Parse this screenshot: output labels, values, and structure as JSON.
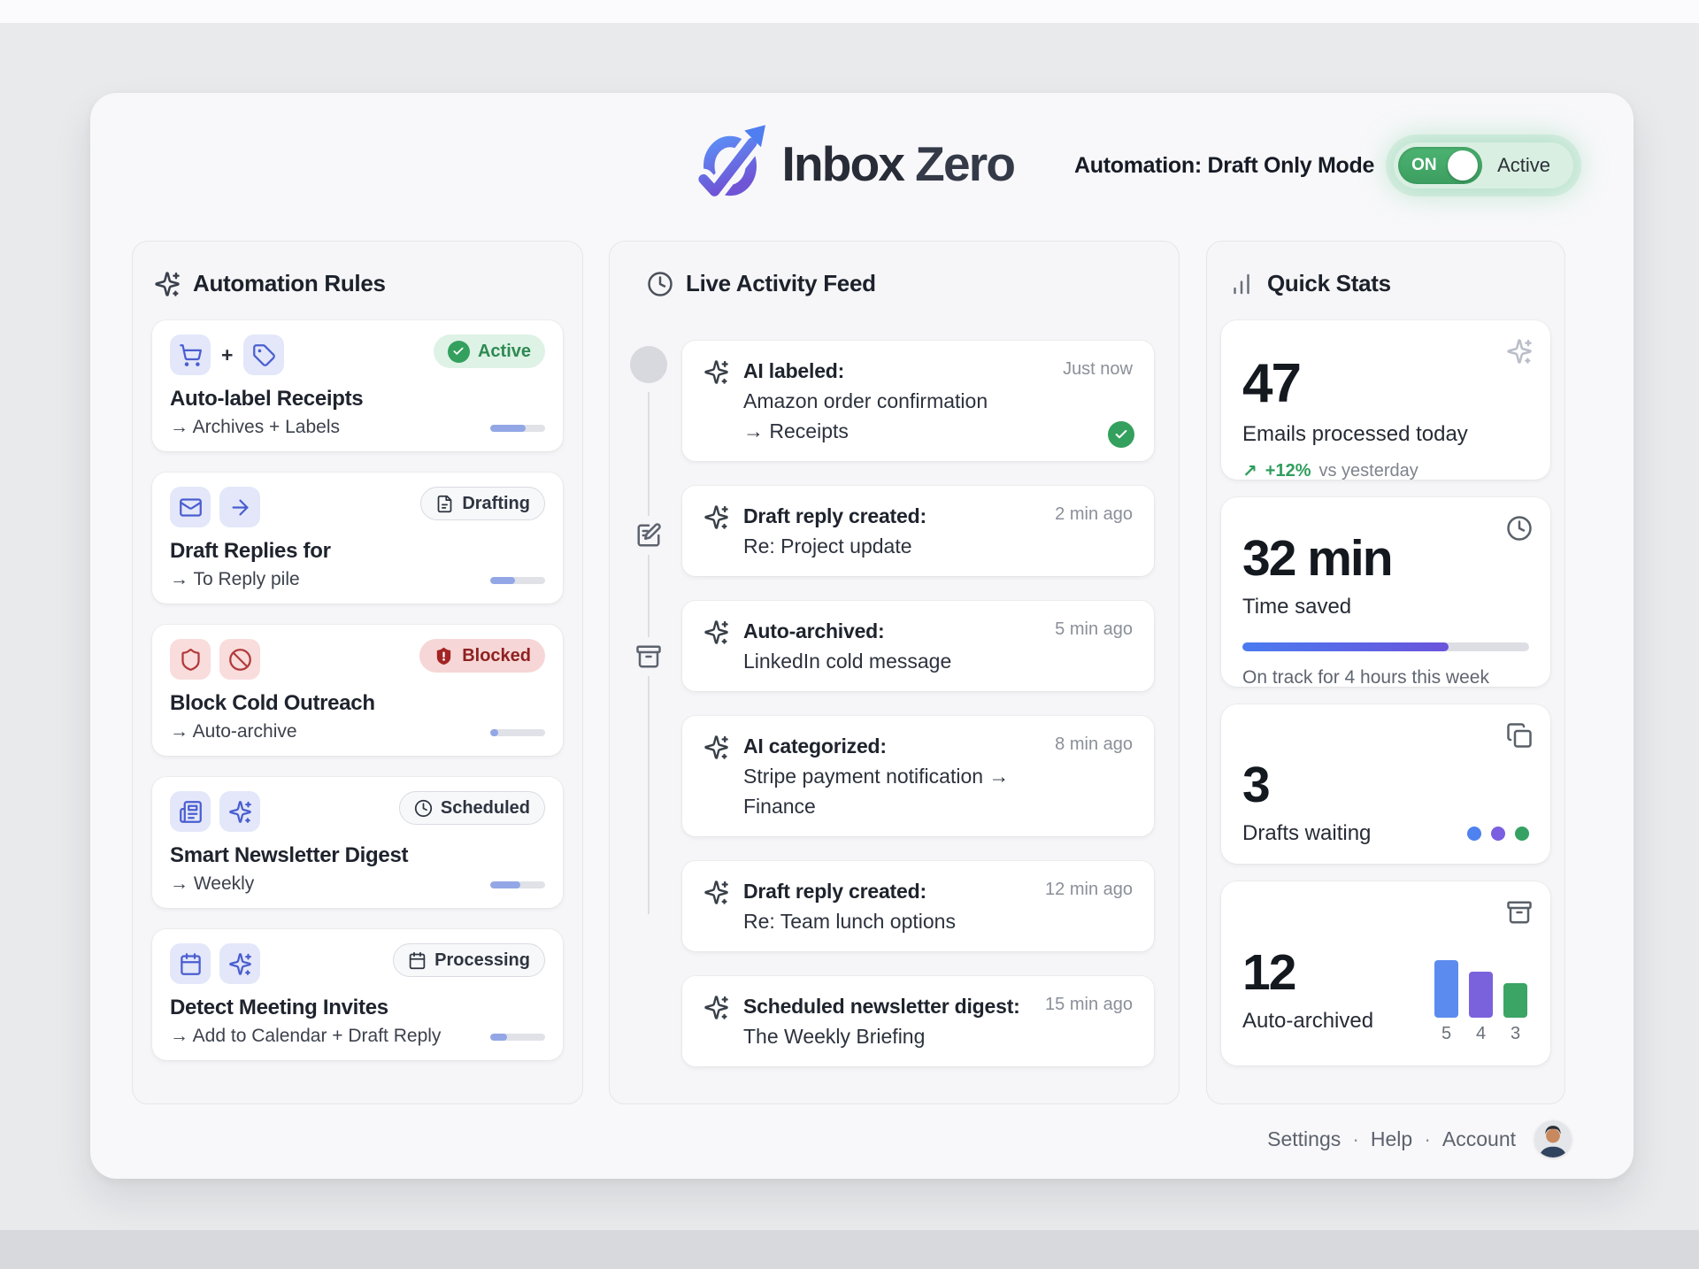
{
  "header": {
    "brand_first": "Inbox",
    "brand_second": "Zero",
    "automation_label": "Automation: Draft Only Mode",
    "toggle_label": "ON",
    "toggle_status": "Active"
  },
  "automation_rules": {
    "title": "Automation Rules",
    "cards": [
      {
        "title": "Auto-label Receipts",
        "subtitle": "→ Archives + Labels",
        "badge": "Active",
        "icon_joiner": "+",
        "progress": 65
      },
      {
        "title": "Draft Replies for",
        "subtitle": "→ To Reply pile",
        "badge": "Drafting",
        "progress": 45
      },
      {
        "title": "Block Cold Outreach",
        "subtitle": "→ Auto-archive",
        "badge": "Blocked",
        "progress": 15
      },
      {
        "title": "Smart Newsletter Digest",
        "subtitle": "→ Weekly",
        "badge": "Scheduled",
        "progress": 55
      },
      {
        "title": "Detect Meeting Invites",
        "subtitle": "→ Add to Calendar + Draft Reply",
        "badge": "Processing",
        "progress": 30
      }
    ]
  },
  "activity_feed": {
    "title": "Live Activity Feed",
    "items": [
      {
        "action": "AI labeled:",
        "detail": "Amazon order confirmation",
        "detail2": "→ Receipts",
        "time": "Just now"
      },
      {
        "action": "Draft reply created:",
        "detail": "Re: Project update",
        "time": "2 min ago"
      },
      {
        "action": "Auto-archived:",
        "detail": "LinkedIn cold message",
        "time": "5 min ago"
      },
      {
        "action": "AI categorized:",
        "detail": "Stripe payment notification → Finance",
        "time": "8 min ago"
      },
      {
        "action": "Draft reply created:",
        "detail": "Re: Team lunch options",
        "time": "12 min ago"
      },
      {
        "action": "Scheduled newsletter digest:",
        "detail": "The Weekly Briefing",
        "time": "15 min ago"
      }
    ]
  },
  "quick_stats": {
    "title": "Quick Stats",
    "cards": [
      {
        "value": "47",
        "label": "Emails processed today",
        "trend_arrow": "↗",
        "trend": "+12%",
        "trend_suffix": "vs yesterday"
      },
      {
        "value": "32 min",
        "label": "Time saved",
        "progress": 72,
        "note": "On track for 4 hours this week"
      },
      {
        "value": "3",
        "label": "Drafts waiting",
        "dot_colors": [
          "#4f82ef",
          "#7a5fe0",
          "#35a263"
        ]
      },
      {
        "value": "12",
        "label": "Auto-archived",
        "bars": [
          {
            "label": "5",
            "value": 5,
            "color": "#5b8bee"
          },
          {
            "label": "4",
            "value": 4,
            "color": "#7b62dd"
          },
          {
            "label": "3",
            "value": 3,
            "color": "#3aa565"
          }
        ]
      }
    ]
  },
  "footer": {
    "links": [
      "Settings",
      "Help",
      "Account"
    ],
    "separator": "·"
  }
}
